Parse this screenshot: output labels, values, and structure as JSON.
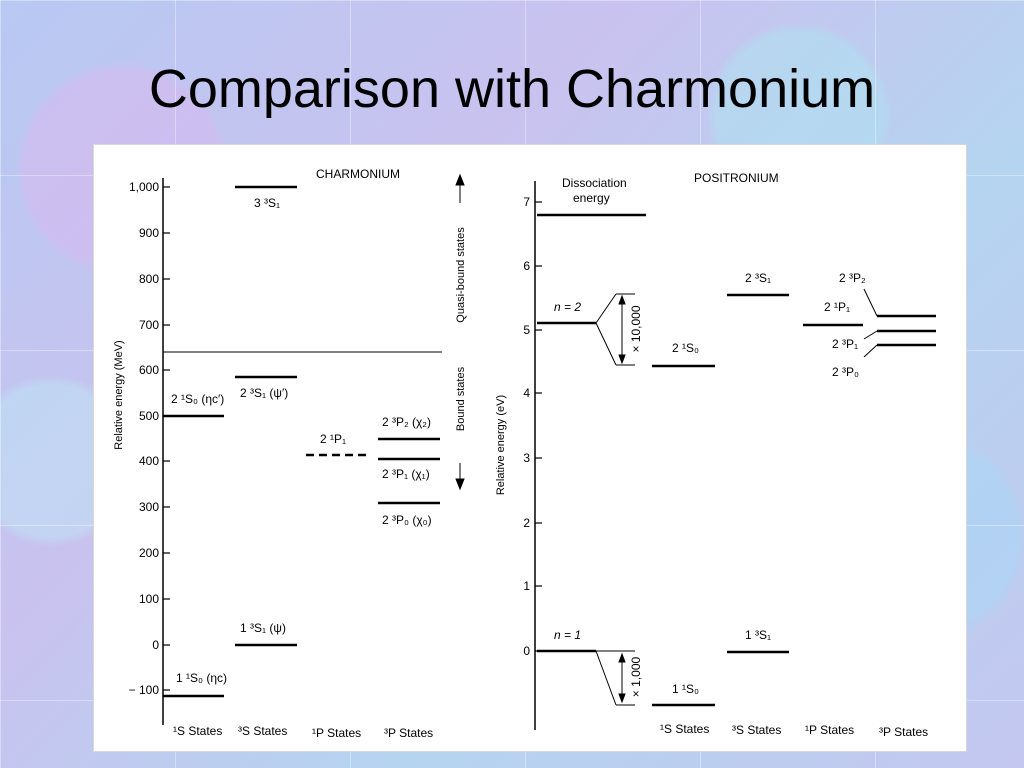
{
  "slide": {
    "title": "Comparison with Charmonium"
  },
  "charmonium": {
    "panel_title": "CHARMONIUM",
    "y_axis_label": "Relative energy (MeV)",
    "y_ticks": [
      "1,000",
      "900",
      "800",
      "700",
      "600",
      "500",
      "400",
      "300",
      "200",
      "100",
      "0",
      "− 100"
    ],
    "states": {
      "s_3s1_3": "3 ³S₁",
      "s_2s0": "2 ¹S₀ (ηc′)",
      "s_2s1": "2 ³S₁ (ψ′)",
      "s_2p1_1": "2 ¹P₁",
      "s_2p2": "2 ³P₂ (χ₂)",
      "s_2p1": "2 ³P₁ (χ₁)",
      "s_2p0": "2 ³P₀ (χ₀)",
      "s_1s1": "1 ³S₁ (ψ)",
      "s_1s0": "1 ¹S₀ (ηc)"
    },
    "side_labels": {
      "quasi": "Quasi-bound states",
      "bound": "Bound states"
    },
    "columns": [
      "¹S States",
      "³S States",
      "¹P States",
      "³P States"
    ]
  },
  "positronium": {
    "panel_title": "POSITRONIUM",
    "dissociation": [
      "Dissociation",
      "energy"
    ],
    "y_axis_label": "Relative energy (eV)",
    "y_ticks": [
      "7",
      "6",
      "5",
      "4",
      "3",
      "2",
      "1",
      "0"
    ],
    "n2": "n = 2",
    "n1": "n = 1",
    "scale_10000": "× 10,000",
    "scale_1000": "× 1,000",
    "states": {
      "p_2s0": "2 ¹S₀",
      "p_2s1": "2 ³S₁",
      "p_2p2": "2 ³P₂",
      "p_2p1_1": "2 ¹P₁",
      "p_2p1": "2 ³P₁",
      "p_2p0": "2 ³P₀",
      "p_1s0": "1 ¹S₀",
      "p_1s1": "1 ³S₁"
    },
    "columns": [
      "¹S States",
      "³S States",
      "¹P States",
      "³P States"
    ]
  }
}
